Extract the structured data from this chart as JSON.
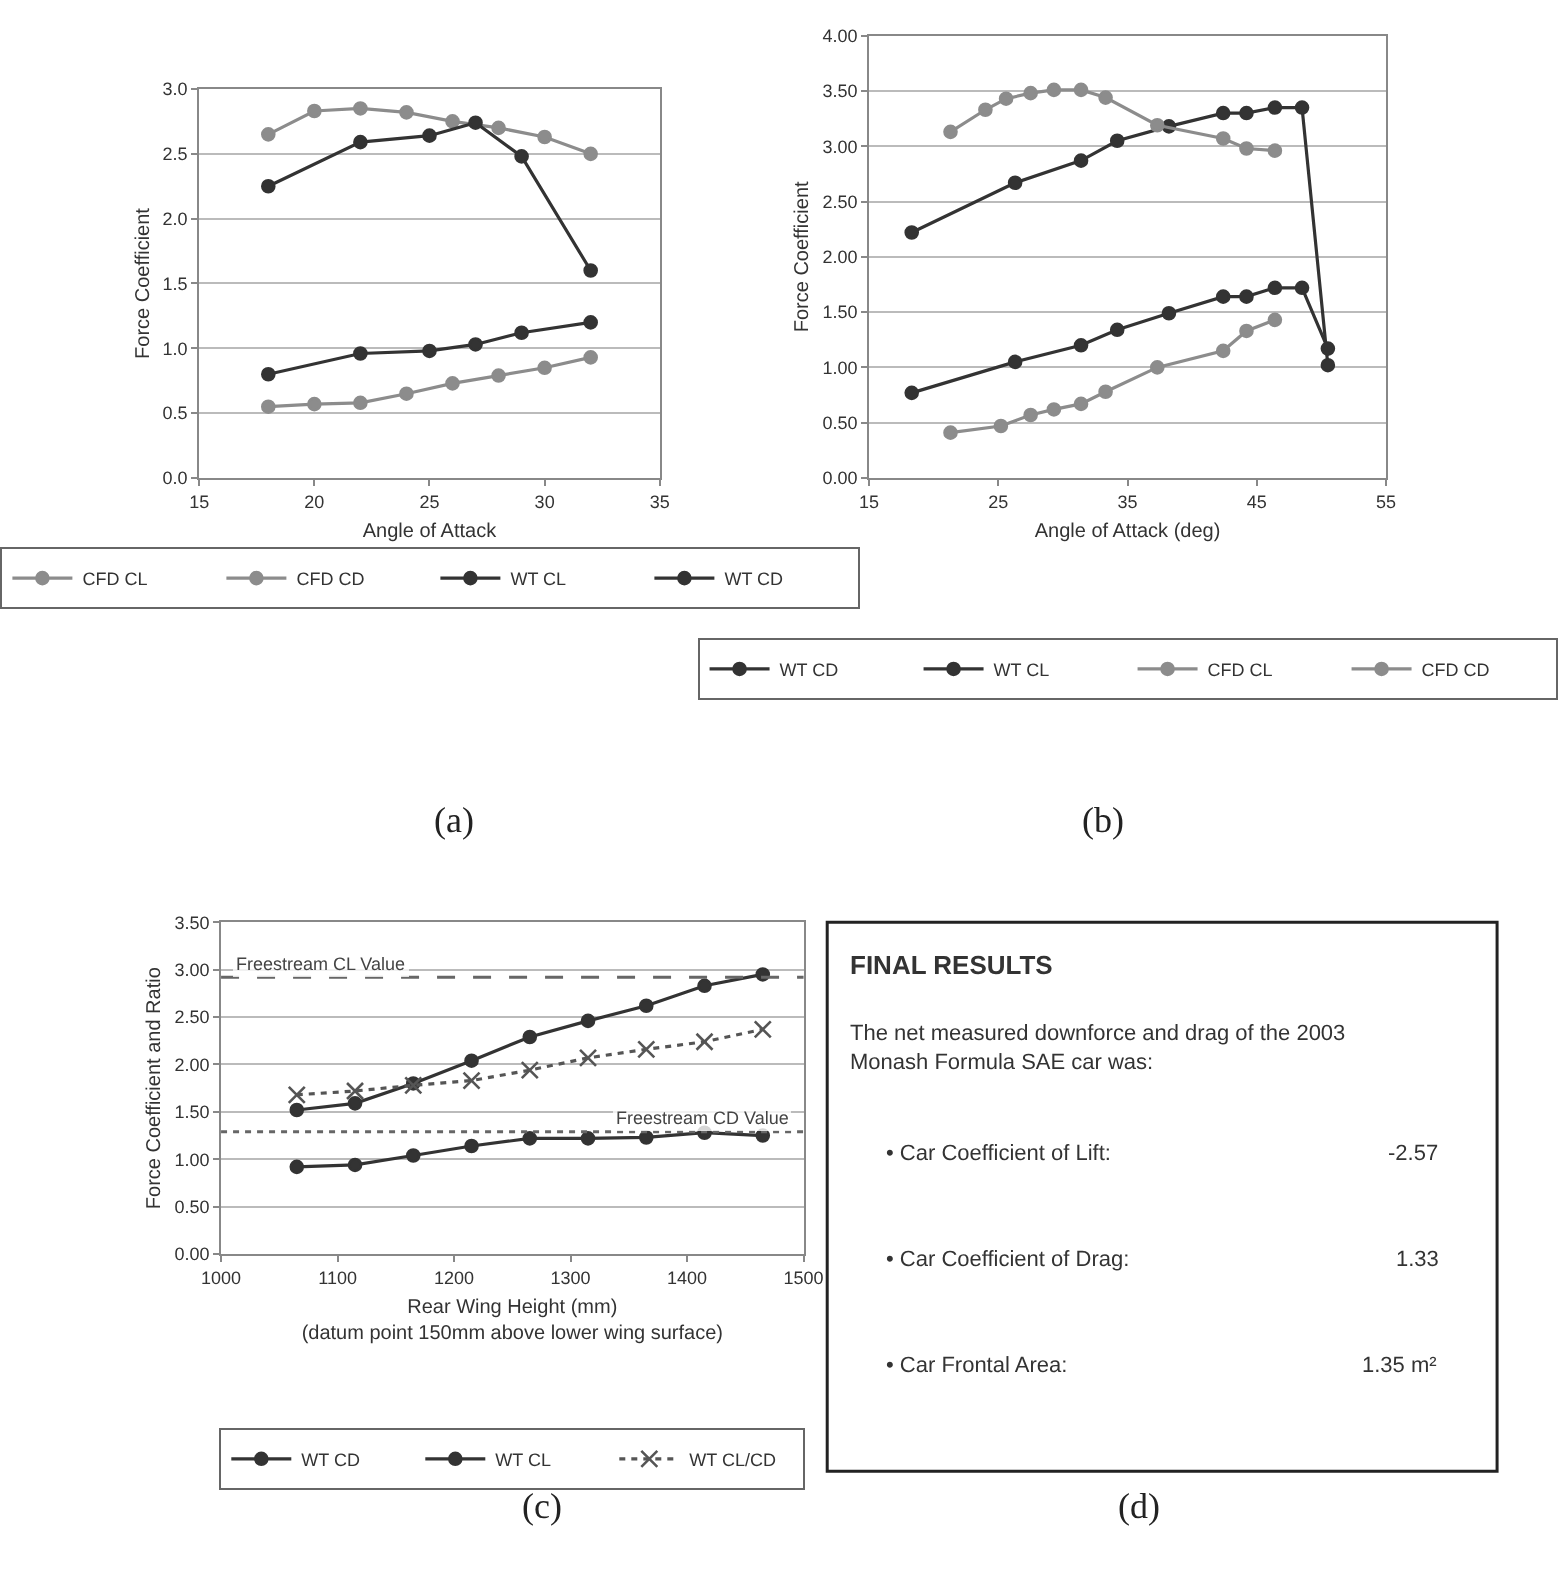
{
  "chart_data": [
    {
      "type": "line",
      "xlabel": "Angle of Attack",
      "ylabel": "Force Coefficient",
      "xlim": [
        15,
        35
      ],
      "xticks": [
        15,
        20,
        25,
        30,
        35
      ],
      "ylim": [
        0,
        3
      ],
      "yticks": [
        {
          "value": 0,
          "label": "0.0"
        },
        {
          "value": 0.5,
          "label": "0.5"
        },
        {
          "value": 1,
          "label": "1.0"
        },
        {
          "value": 1.5,
          "label": "1.5"
        },
        {
          "value": 2,
          "label": "2.0"
        },
        {
          "value": 2.5,
          "label": "2.5"
        },
        {
          "value": 3,
          "label": "3.0"
        }
      ],
      "grid": "y",
      "legend": "bottom",
      "marker": "circle",
      "annotations": [
        "(a)"
      ],
      "series": [
        {
          "name": "CFD CL",
          "color": "#8c8c8c",
          "x": [
            18,
            20,
            22,
            24,
            26,
            28,
            30,
            32
          ],
          "values": [
            2.65,
            2.83,
            2.85,
            2.82,
            2.75,
            2.7,
            2.63,
            2.5
          ]
        },
        {
          "name": "CFD CD",
          "color": "#8c8c8c",
          "x": [
            18,
            20,
            22,
            24,
            26,
            28,
            30,
            32
          ],
          "values": [
            0.55,
            0.57,
            0.58,
            0.65,
            0.73,
            0.79,
            0.85,
            0.93
          ]
        },
        {
          "name": "WT CL",
          "color": "#333333",
          "x": [
            18,
            22,
            25,
            27,
            29,
            32
          ],
          "values": [
            2.25,
            2.59,
            2.64,
            2.74,
            2.48,
            1.6
          ]
        },
        {
          "name": "WT CD",
          "color": "#333333",
          "x": [
            18,
            22,
            25,
            27,
            29,
            32
          ],
          "values": [
            0.8,
            0.96,
            0.98,
            1.03,
            1.12,
            1.2
          ]
        }
      ]
    },
    {
      "type": "line",
      "xlabel": "Angle of Attack (deg)",
      "ylabel": "Force Coefficient",
      "xlim": [
        15,
        55
      ],
      "xticks": [
        15,
        25,
        35,
        45,
        55
      ],
      "ylim": [
        0,
        4
      ],
      "yticks": [
        {
          "value": 0,
          "label": "0.00"
        },
        {
          "value": 0.5,
          "label": "0.50"
        },
        {
          "value": 1,
          "label": "1.00"
        },
        {
          "value": 1.5,
          "label": "1.50"
        },
        {
          "value": 2,
          "label": "2.00"
        },
        {
          "value": 2.5,
          "label": "2.50"
        },
        {
          "value": 3,
          "label": "3.00"
        },
        {
          "value": 3.5,
          "label": "3.50"
        },
        {
          "value": 4,
          "label": "4.00"
        }
      ],
      "grid": "y",
      "legend": "bottom",
      "marker": "circle",
      "annotations": [
        "(b)"
      ],
      "series": [
        {
          "name": "WT CD",
          "color": "#333333",
          "x": [
            18.3,
            26.3,
            31.4,
            34.2,
            38.2,
            42.4,
            44.2,
            46.4,
            48.5,
            50.5
          ],
          "values": [
            0.77,
            1.05,
            1.2,
            1.34,
            1.49,
            1.64,
            1.64,
            1.72,
            1.72,
            1.17
          ]
        },
        {
          "name": "WT CL",
          "color": "#333333",
          "x": [
            18.3,
            26.3,
            31.4,
            34.2,
            38.2,
            42.4,
            44.2,
            46.4,
            48.5,
            50.5
          ],
          "values": [
            2.22,
            2.67,
            2.87,
            3.05,
            3.18,
            3.3,
            3.3,
            3.35,
            3.35,
            1.02
          ]
        },
        {
          "name": "CFD CL",
          "color": "#8c8c8c",
          "x": [
            21.3,
            24.0,
            25.6,
            27.5,
            29.3,
            31.4,
            33.3,
            37.3,
            42.4,
            44.2,
            46.4
          ],
          "values": [
            3.13,
            3.33,
            3.43,
            3.48,
            3.51,
            3.51,
            3.44,
            3.19,
            3.07,
            2.98,
            2.96
          ]
        },
        {
          "name": "CFD CD",
          "color": "#8c8c8c",
          "x": [
            21.3,
            25.2,
            27.5,
            29.3,
            31.4,
            33.3,
            37.3,
            42.4,
            44.2,
            46.4
          ],
          "values": [
            0.41,
            0.47,
            0.57,
            0.62,
            0.67,
            0.78,
            1.0,
            1.15,
            1.33,
            1.43
          ]
        }
      ]
    },
    {
      "type": "line",
      "xlabel": "Rear Wing Height (mm)\n(datum point 150mm above lower wing surface)",
      "ylabel": "Force Coefficient and Ratio",
      "xlim": [
        1000,
        1500
      ],
      "xticks": [
        1000,
        1100,
        1200,
        1300,
        1400,
        1500
      ],
      "ylim": [
        0,
        3.5
      ],
      "yticks": [
        {
          "value": 0,
          "label": "0.00"
        },
        {
          "value": 0.5,
          "label": "0.50"
        },
        {
          "value": 1,
          "label": "1.00"
        },
        {
          "value": 1.5,
          "label": "1.50"
        },
        {
          "value": 2,
          "label": "2.00"
        },
        {
          "value": 2.5,
          "label": "2.50"
        },
        {
          "value": 3,
          "label": "3.00"
        },
        {
          "value": 3.5,
          "label": "3.50"
        }
      ],
      "grid": "y",
      "legend": "bottom",
      "marker": "circle",
      "annotations": [
        "(c)"
      ],
      "ref_lines": [
        {
          "axis": "y",
          "value": 2.92,
          "label": "Freestream CL Value",
          "color": "#666666",
          "line_style": "dashed"
        },
        {
          "axis": "y",
          "value": 1.29,
          "label": "Freestream CD Value",
          "color": "#666666",
          "line_style": "dotted"
        }
      ],
      "series": [
        {
          "name": "WT CD",
          "color": "#333333",
          "x": [
            1065,
            1115,
            1165,
            1215,
            1265,
            1315,
            1365,
            1415,
            1465
          ],
          "values": [
            0.92,
            0.94,
            1.04,
            1.14,
            1.22,
            1.22,
            1.23,
            1.28,
            1.25
          ]
        },
        {
          "name": "WT CL",
          "color": "#333333",
          "x": [
            1065,
            1115,
            1165,
            1215,
            1265,
            1315,
            1365,
            1415,
            1465
          ],
          "values": [
            1.52,
            1.59,
            1.8,
            2.04,
            2.29,
            2.46,
            2.62,
            2.83,
            2.95
          ]
        },
        {
          "name": "WT CL/CD",
          "color": "#555555",
          "marker": "cross",
          "line_style": "dotted",
          "x": [
            1065,
            1115,
            1165,
            1215,
            1265,
            1315,
            1365,
            1415,
            1465
          ],
          "values": [
            1.68,
            1.72,
            1.78,
            1.83,
            1.94,
            2.07,
            2.16,
            2.24,
            2.37
          ]
        }
      ]
    },
    {
      "type": "other",
      "title": "FINAL RESULTS",
      "annotations": [
        "The net measured downforce and drag of the 2003\nMonash Formula SAE car was:",
        "• Car Coefficient of Lift:",
        "-2.57",
        "• Car Coefficient of Drag:",
        "1.33",
        "• Car Frontal Area:",
        "1.35 m²",
        "(d)"
      ]
    }
  ]
}
